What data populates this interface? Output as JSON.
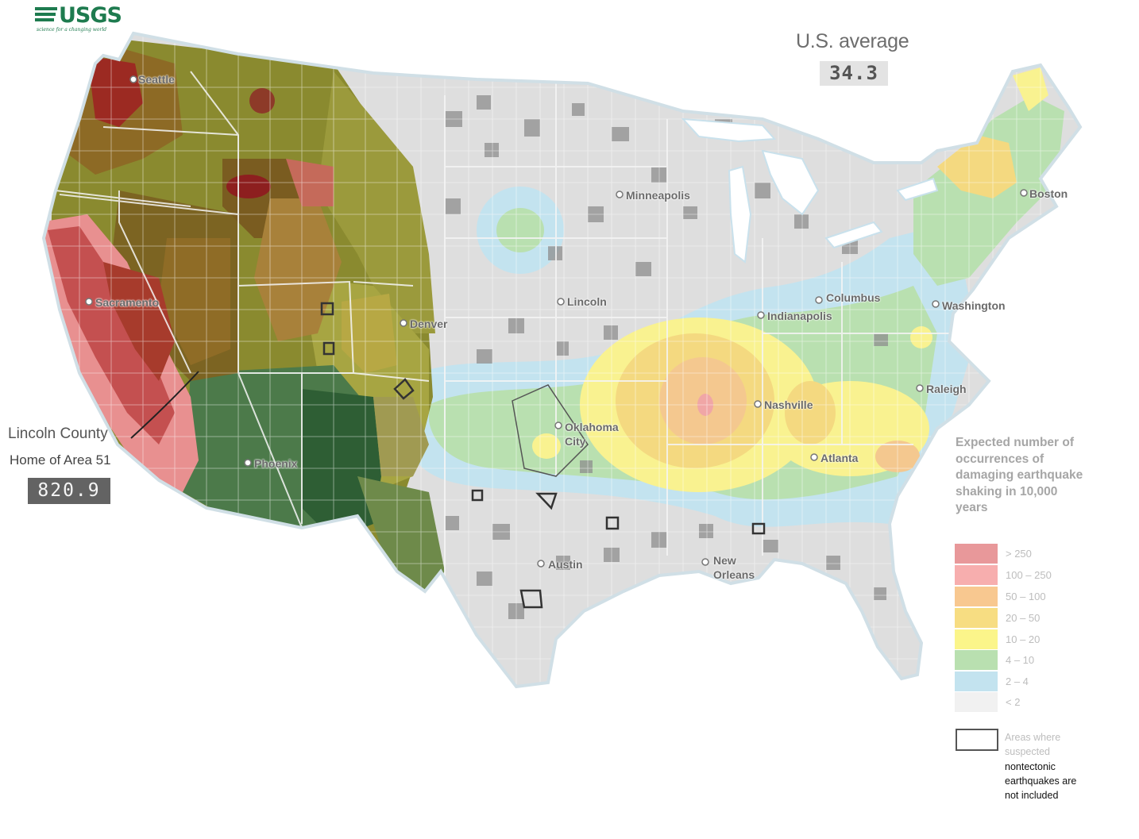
{
  "logo": {
    "wordmark": "USGS",
    "tagline": "science for a changing world"
  },
  "us_average": {
    "label": "U.S. average",
    "value": "34.3"
  },
  "callout": {
    "name": "Lincoln County",
    "subtitle": "Home of Area 51",
    "value": "820.9"
  },
  "cities": [
    "Seattle",
    "Sacramento",
    "Phoenix",
    "Denver",
    "Minneapolis",
    "Lincoln",
    "Oklahoma City",
    "Austin",
    "New Orleans",
    "Nashville",
    "Atlanta",
    "Indianapolis",
    "Columbus",
    "Washington",
    "Raleigh",
    "Boston"
  ],
  "legend": {
    "title": "Expected number of occurrences of damaging earthquake shaking in 10,000 years",
    "classes": [
      {
        "label": "> 250",
        "color": "#e8989a"
      },
      {
        "label": "100 – 250",
        "color": "#f7aeae"
      },
      {
        "label": "50 – 100",
        "color": "#f8c890"
      },
      {
        "label": "20 – 50",
        "color": "#f7dd82"
      },
      {
        "label": "10 – 20",
        "color": "#fbf58a"
      },
      {
        "label": "4 – 10",
        "color": "#b9e0b0"
      },
      {
        "label": "2 – 4",
        "color": "#c3e3ef"
      },
      {
        "label": "< 2",
        "color": "#f1f1f1"
      }
    ],
    "note_faded": "Areas where suspected",
    "note_dark": "nontectonic earthquakes are not included"
  }
}
